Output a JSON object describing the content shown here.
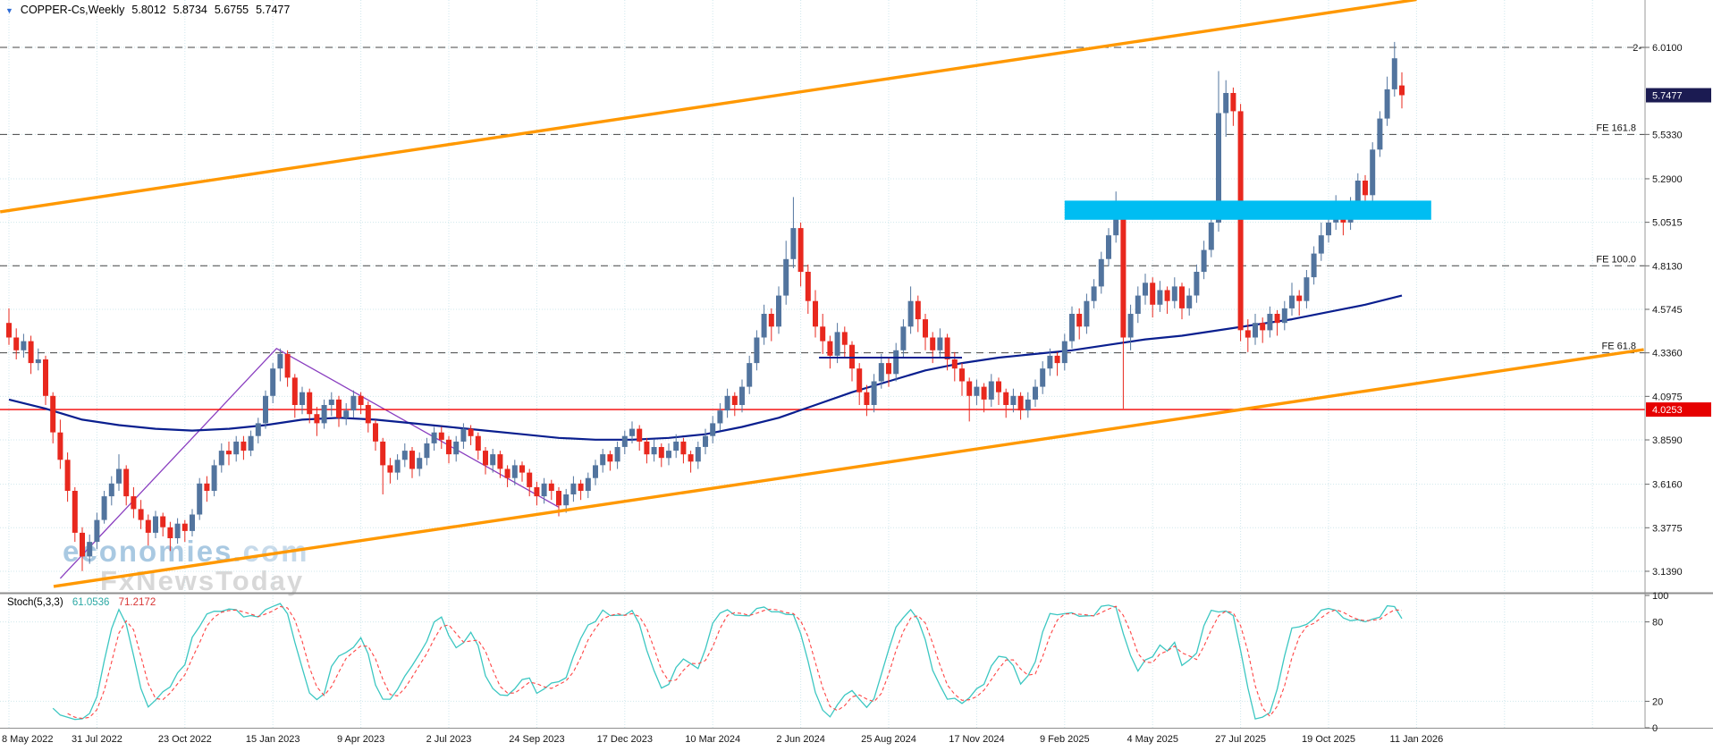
{
  "window": {
    "symbol_timeframe": "COPPER-Cs,Weekly",
    "ohlc": {
      "open": "5.8012",
      "high": "5.8734",
      "low": "5.6755",
      "close": "5.7477"
    }
  },
  "watermark": {
    "brand": "economies",
    "suffix": ".com",
    "line2": "FxNewsToday"
  },
  "stoch": {
    "label": "Stoch(5,3,3)",
    "value_k": "61.0536",
    "value_d": "71.2172",
    "k_period": 5,
    "slowing": 3,
    "d_period": 3,
    "levels": [
      80,
      20
    ],
    "axis_labels": [
      "100",
      "80",
      "20",
      "0"
    ]
  },
  "chart_data": {
    "type": "candlestick",
    "symbol": "COPPER-Cs",
    "timeframe": "Weekly",
    "start_date": "8 May 2022",
    "x_axis": {
      "label_interval_weeks": 12,
      "labels": [
        "8 May 2022",
        "31 Jul 2022",
        "23 Oct 2022",
        "15 Jan 2023",
        "9 Apr 2023",
        "2 Jul 2023",
        "24 Sep 2023",
        "17 Dec 2023",
        "10 Mar 2024",
        "2 Jun 2024",
        "25 Aug 2024",
        "17 Nov 2024",
        "9 Feb 2025",
        "4 May 2025",
        "27 Jul 2025",
        "19 Oct 2025",
        "11 Jan 2026"
      ]
    },
    "y_axis": {
      "scale_labels": [
        "6.0100",
        "5.5330",
        "5.2900",
        "5.0515",
        "4.8130",
        "4.5745",
        "4.3360",
        "4.0975",
        "3.8590",
        "3.6160",
        "3.3775",
        "3.1390"
      ],
      "current_badge": "5.7477",
      "red_badge": "4.0253",
      "edge_note": {
        "text": "2-",
        "price": 6.01
      }
    },
    "overlays": {
      "fib_levels": [
        {
          "label": "",
          "price": 6.01
        },
        {
          "label": "FE 161.8",
          "price": 5.533
        },
        {
          "label": "FE 100.0",
          "price": 4.813
        },
        {
          "label": "FE 61.8",
          "price": 4.336
        }
      ],
      "red_line_price": 4.0253,
      "channel": {
        "upper": [
          [
            -1.2,
            5.109
          ],
          [
            192,
            6.272
          ]
        ],
        "lower": [
          [
            6.1,
            3.056
          ],
          [
            223,
            4.354
          ]
        ]
      },
      "purple_zigzag": [
        [
          7,
          3.1
        ],
        [
          36.5,
          4.36
        ],
        [
          75,
          3.49
        ]
      ],
      "support_segment": {
        "price": 4.31,
        "w1": 110.5,
        "w2": 130
      },
      "supply_zone": {
        "price_top": 5.17,
        "price_bottom": 5.065,
        "w1": 144,
        "w2": 194
      },
      "ma_points": [
        [
          0,
          4.08
        ],
        [
          5,
          4.03
        ],
        [
          10,
          3.97
        ],
        [
          15,
          3.94
        ],
        [
          20,
          3.92
        ],
        [
          25,
          3.91
        ],
        [
          30,
          3.92
        ],
        [
          35,
          3.94
        ],
        [
          40,
          3.97
        ],
        [
          45,
          3.98
        ],
        [
          50,
          3.97
        ],
        [
          55,
          3.95
        ],
        [
          60,
          3.93
        ],
        [
          65,
          3.91
        ],
        [
          70,
          3.89
        ],
        [
          75,
          3.87
        ],
        [
          80,
          3.86
        ],
        [
          85,
          3.86
        ],
        [
          90,
          3.87
        ],
        [
          95,
          3.89
        ],
        [
          100,
          3.93
        ],
        [
          105,
          3.98
        ],
        [
          110,
          4.05
        ],
        [
          115,
          4.12
        ],
        [
          120,
          4.18
        ],
        [
          125,
          4.24
        ],
        [
          130,
          4.28
        ],
        [
          135,
          4.31
        ],
        [
          140,
          4.33
        ],
        [
          145,
          4.35
        ],
        [
          150,
          4.38
        ],
        [
          155,
          4.41
        ],
        [
          160,
          4.43
        ],
        [
          165,
          4.46
        ],
        [
          170,
          4.49
        ],
        [
          175,
          4.52
        ],
        [
          180,
          4.56
        ],
        [
          185,
          4.6
        ],
        [
          190,
          4.65
        ]
      ]
    },
    "colors": {
      "bull": "#52749e",
      "bear": "#e8281e",
      "ma": "#0a1f8f",
      "channel": "#ff9800",
      "zone": "#00bdf2",
      "red_line": "#f40000",
      "purple": "#8a3fc0",
      "segment": "#0a1f8f",
      "stoch_k": "#3cc7c2",
      "stoch_d": "#ff4444",
      "badge_price": "#1b1b52",
      "badge_red": "#e60000"
    },
    "candles": [
      [
        4.5,
        4.58,
        4.38,
        4.42
      ],
      [
        4.42,
        4.47,
        4.3,
        4.35
      ],
      [
        4.35,
        4.44,
        4.31,
        4.4
      ],
      [
        4.4,
        4.43,
        4.22,
        4.28
      ],
      [
        4.28,
        4.36,
        4.24,
        4.3
      ],
      [
        4.3,
        4.32,
        4.05,
        4.1
      ],
      [
        4.1,
        4.12,
        3.84,
        3.9
      ],
      [
        3.9,
        3.97,
        3.7,
        3.75
      ],
      [
        3.75,
        3.79,
        3.52,
        3.58
      ],
      [
        3.58,
        3.6,
        3.3,
        3.35
      ],
      [
        3.35,
        3.38,
        3.14,
        3.22
      ],
      [
        3.22,
        3.34,
        3.18,
        3.3
      ],
      [
        3.3,
        3.46,
        3.26,
        3.42
      ],
      [
        3.42,
        3.58,
        3.4,
        3.55
      ],
      [
        3.55,
        3.66,
        3.5,
        3.62
      ],
      [
        3.62,
        3.78,
        3.58,
        3.7
      ],
      [
        3.7,
        3.72,
        3.5,
        3.55
      ],
      [
        3.55,
        3.6,
        3.43,
        3.48
      ],
      [
        3.48,
        3.53,
        3.37,
        3.42
      ],
      [
        3.42,
        3.45,
        3.28,
        3.35
      ],
      [
        3.35,
        3.47,
        3.32,
        3.44
      ],
      [
        3.44,
        3.46,
        3.33,
        3.38
      ],
      [
        3.38,
        3.41,
        3.25,
        3.32
      ],
      [
        3.32,
        3.43,
        3.29,
        3.4
      ],
      [
        3.4,
        3.42,
        3.3,
        3.36
      ],
      [
        3.36,
        3.48,
        3.33,
        3.45
      ],
      [
        3.45,
        3.65,
        3.42,
        3.62
      ],
      [
        3.62,
        3.66,
        3.52,
        3.58
      ],
      [
        3.58,
        3.75,
        3.55,
        3.72
      ],
      [
        3.72,
        3.84,
        3.68,
        3.8
      ],
      [
        3.8,
        3.85,
        3.72,
        3.78
      ],
      [
        3.78,
        3.88,
        3.74,
        3.85
      ],
      [
        3.85,
        3.88,
        3.75,
        3.8
      ],
      [
        3.8,
        3.91,
        3.77,
        3.88
      ],
      [
        3.88,
        3.98,
        3.84,
        3.95
      ],
      [
        3.95,
        4.13,
        3.92,
        4.1
      ],
      [
        4.1,
        4.28,
        4.06,
        4.25
      ],
      [
        4.25,
        4.36,
        4.18,
        4.33
      ],
      [
        4.33,
        4.35,
        4.15,
        4.2
      ],
      [
        4.2,
        4.22,
        3.98,
        4.05
      ],
      [
        4.05,
        4.15,
        4.0,
        4.12
      ],
      [
        4.12,
        4.14,
        3.95,
        4.0
      ],
      [
        4.0,
        4.04,
        3.88,
        3.95
      ],
      [
        3.95,
        4.08,
        3.92,
        4.05
      ],
      [
        4.05,
        4.12,
        3.99,
        4.08
      ],
      [
        4.08,
        4.1,
        3.93,
        3.98
      ],
      [
        3.98,
        4.06,
        3.94,
        4.02
      ],
      [
        4.02,
        4.13,
        3.98,
        4.1
      ],
      [
        4.1,
        4.12,
        4.0,
        4.05
      ],
      [
        4.05,
        4.07,
        3.9,
        3.95
      ],
      [
        3.95,
        3.97,
        3.8,
        3.85
      ],
      [
        3.85,
        3.87,
        3.56,
        3.72
      ],
      [
        3.72,
        3.76,
        3.62,
        3.68
      ],
      [
        3.68,
        3.78,
        3.64,
        3.75
      ],
      [
        3.75,
        3.84,
        3.71,
        3.8
      ],
      [
        3.8,
        3.82,
        3.65,
        3.7
      ],
      [
        3.7,
        3.79,
        3.66,
        3.76
      ],
      [
        3.76,
        3.87,
        3.72,
        3.84
      ],
      [
        3.84,
        3.93,
        3.8,
        3.9
      ],
      [
        3.9,
        3.93,
        3.81,
        3.86
      ],
      [
        3.86,
        3.88,
        3.73,
        3.78
      ],
      [
        3.78,
        3.88,
        3.74,
        3.85
      ],
      [
        3.85,
        3.95,
        3.81,
        3.92
      ],
      [
        3.92,
        3.94,
        3.83,
        3.88
      ],
      [
        3.88,
        3.9,
        3.75,
        3.8
      ],
      [
        3.8,
        3.82,
        3.67,
        3.72
      ],
      [
        3.72,
        3.81,
        3.68,
        3.78
      ],
      [
        3.78,
        3.8,
        3.65,
        3.7
      ],
      [
        3.7,
        3.72,
        3.6,
        3.65
      ],
      [
        3.65,
        3.75,
        3.61,
        3.72
      ],
      [
        3.72,
        3.74,
        3.63,
        3.68
      ],
      [
        3.68,
        3.7,
        3.55,
        3.6
      ],
      [
        3.6,
        3.63,
        3.5,
        3.55
      ],
      [
        3.55,
        3.65,
        3.51,
        3.62
      ],
      [
        3.62,
        3.64,
        3.53,
        3.58
      ],
      [
        3.58,
        3.6,
        3.44,
        3.5
      ],
      [
        3.5,
        3.59,
        3.46,
        3.56
      ],
      [
        3.56,
        3.66,
        3.52,
        3.62
      ],
      [
        3.62,
        3.64,
        3.53,
        3.58
      ],
      [
        3.58,
        3.68,
        3.54,
        3.65
      ],
      [
        3.65,
        3.75,
        3.61,
        3.72
      ],
      [
        3.72,
        3.81,
        3.68,
        3.78
      ],
      [
        3.78,
        3.8,
        3.69,
        3.74
      ],
      [
        3.74,
        3.85,
        3.7,
        3.82
      ],
      [
        3.82,
        3.91,
        3.78,
        3.88
      ],
      [
        3.88,
        3.96,
        3.84,
        3.92
      ],
      [
        3.92,
        3.94,
        3.8,
        3.85
      ],
      [
        3.85,
        3.87,
        3.73,
        3.78
      ],
      [
        3.78,
        3.86,
        3.74,
        3.82
      ],
      [
        3.82,
        3.84,
        3.71,
        3.76
      ],
      [
        3.76,
        3.84,
        3.72,
        3.8
      ],
      [
        3.8,
        3.89,
        3.76,
        3.85
      ],
      [
        3.85,
        3.87,
        3.73,
        3.78
      ],
      [
        3.78,
        3.8,
        3.68,
        3.74
      ],
      [
        3.74,
        3.85,
        3.7,
        3.82
      ],
      [
        3.82,
        3.92,
        3.78,
        3.88
      ],
      [
        3.88,
        3.99,
        3.84,
        3.95
      ],
      [
        3.95,
        4.06,
        3.91,
        4.02
      ],
      [
        4.02,
        4.14,
        3.98,
        4.1
      ],
      [
        4.1,
        4.12,
        3.99,
        4.05
      ],
      [
        4.05,
        4.19,
        4.01,
        4.15
      ],
      [
        4.15,
        4.32,
        4.11,
        4.28
      ],
      [
        4.28,
        4.46,
        4.24,
        4.42
      ],
      [
        4.42,
        4.6,
        4.38,
        4.55
      ],
      [
        4.55,
        4.58,
        4.4,
        4.48
      ],
      [
        4.48,
        4.7,
        4.44,
        4.65
      ],
      [
        4.65,
        4.95,
        4.6,
        4.85
      ],
      [
        4.85,
        5.19,
        4.8,
        5.02
      ],
      [
        5.02,
        5.05,
        4.7,
        4.78
      ],
      [
        4.78,
        4.82,
        4.55,
        4.62
      ],
      [
        4.62,
        4.68,
        4.42,
        4.48
      ],
      [
        4.48,
        4.55,
        4.33,
        4.4
      ],
      [
        4.4,
        4.43,
        4.25,
        4.32
      ],
      [
        4.32,
        4.5,
        4.28,
        4.45
      ],
      [
        4.45,
        4.48,
        4.31,
        4.38
      ],
      [
        4.38,
        4.4,
        4.18,
        4.25
      ],
      [
        4.25,
        4.28,
        4.05,
        4.12
      ],
      [
        4.12,
        4.16,
        3.99,
        4.05
      ],
      [
        4.05,
        4.22,
        4.01,
        4.18
      ],
      [
        4.18,
        4.33,
        4.14,
        4.28
      ],
      [
        4.28,
        4.31,
        4.15,
        4.22
      ],
      [
        4.22,
        4.39,
        4.18,
        4.35
      ],
      [
        4.35,
        4.52,
        4.31,
        4.48
      ],
      [
        4.48,
        4.7,
        4.44,
        4.62
      ],
      [
        4.62,
        4.65,
        4.45,
        4.52
      ],
      [
        4.52,
        4.55,
        4.35,
        4.42
      ],
      [
        4.42,
        4.45,
        4.28,
        4.35
      ],
      [
        4.35,
        4.47,
        4.31,
        4.42
      ],
      [
        4.42,
        4.44,
        4.24,
        4.3
      ],
      [
        4.3,
        4.34,
        4.18,
        4.25
      ],
      [
        4.25,
        4.28,
        4.1,
        4.18
      ],
      [
        4.18,
        4.2,
        3.96,
        4.1
      ],
      [
        4.1,
        4.19,
        4.05,
        4.15
      ],
      [
        4.15,
        4.17,
        4.01,
        4.08
      ],
      [
        4.08,
        4.22,
        4.04,
        4.18
      ],
      [
        4.18,
        4.2,
        4.05,
        4.12
      ],
      [
        4.12,
        4.14,
        3.98,
        4.05
      ],
      [
        4.05,
        4.14,
        4.01,
        4.1
      ],
      [
        4.1,
        4.12,
        3.97,
        4.02
      ],
      [
        4.02,
        4.12,
        3.98,
        4.08
      ],
      [
        4.08,
        4.19,
        4.04,
        4.15
      ],
      [
        4.15,
        4.29,
        4.11,
        4.25
      ],
      [
        4.25,
        4.36,
        4.21,
        4.32
      ],
      [
        4.32,
        4.34,
        4.21,
        4.28
      ],
      [
        4.28,
        4.44,
        4.24,
        4.4
      ],
      [
        4.4,
        4.59,
        4.36,
        4.55
      ],
      [
        4.55,
        4.58,
        4.41,
        4.48
      ],
      [
        4.48,
        4.66,
        4.44,
        4.62
      ],
      [
        4.62,
        4.74,
        4.58,
        4.7
      ],
      [
        4.7,
        4.89,
        4.66,
        4.85
      ],
      [
        4.85,
        5.02,
        4.81,
        4.98
      ],
      [
        4.98,
        5.22,
        4.94,
        5.12
      ],
      [
        5.12,
        5.15,
        4.03,
        4.42
      ],
      [
        4.42,
        4.6,
        4.35,
        4.55
      ],
      [
        4.55,
        4.7,
        4.5,
        4.65
      ],
      [
        4.65,
        4.77,
        4.6,
        4.72
      ],
      [
        4.72,
        4.75,
        4.53,
        4.6
      ],
      [
        4.6,
        4.73,
        4.56,
        4.68
      ],
      [
        4.68,
        4.7,
        4.55,
        4.62
      ],
      [
        4.62,
        4.75,
        4.58,
        4.7
      ],
      [
        4.7,
        4.72,
        4.52,
        4.58
      ],
      [
        4.58,
        4.69,
        4.54,
        4.65
      ],
      [
        4.65,
        4.82,
        4.61,
        4.78
      ],
      [
        4.78,
        4.95,
        4.74,
        4.9
      ],
      [
        4.9,
        5.1,
        4.86,
        5.05
      ],
      [
        5.05,
        5.88,
        5.0,
        5.65
      ],
      [
        5.65,
        5.83,
        5.52,
        5.76
      ],
      [
        5.76,
        5.79,
        5.58,
        5.66
      ],
      [
        5.66,
        5.7,
        4.4,
        4.46
      ],
      [
        4.46,
        4.52,
        4.34,
        4.42
      ],
      [
        4.42,
        4.55,
        4.38,
        4.5
      ],
      [
        4.5,
        4.53,
        4.39,
        4.46
      ],
      [
        4.46,
        4.59,
        4.42,
        4.55
      ],
      [
        4.55,
        4.57,
        4.43,
        4.5
      ],
      [
        4.5,
        4.62,
        4.46,
        4.58
      ],
      [
        4.58,
        4.72,
        4.54,
        4.65
      ],
      [
        4.65,
        4.68,
        4.54,
        4.62
      ],
      [
        4.62,
        4.79,
        4.58,
        4.75
      ],
      [
        4.75,
        4.92,
        4.71,
        4.88
      ],
      [
        4.88,
        5.05,
        4.84,
        4.98
      ],
      [
        4.98,
        5.09,
        4.94,
        5.05
      ],
      [
        5.05,
        5.2,
        5.01,
        5.12
      ],
      [
        5.12,
        5.14,
        4.98,
        5.05
      ],
      [
        5.05,
        5.19,
        5.01,
        5.15
      ],
      [
        5.15,
        5.32,
        5.11,
        5.28
      ],
      [
        5.28,
        5.31,
        5.12,
        5.2
      ],
      [
        5.2,
        5.49,
        5.16,
        5.45
      ],
      [
        5.45,
        5.66,
        5.41,
        5.62
      ],
      [
        5.62,
        5.85,
        5.58,
        5.78
      ],
      [
        5.78,
        6.04,
        5.74,
        5.95
      ],
      [
        5.8012,
        5.8734,
        5.6755,
        5.7477
      ]
    ]
  }
}
